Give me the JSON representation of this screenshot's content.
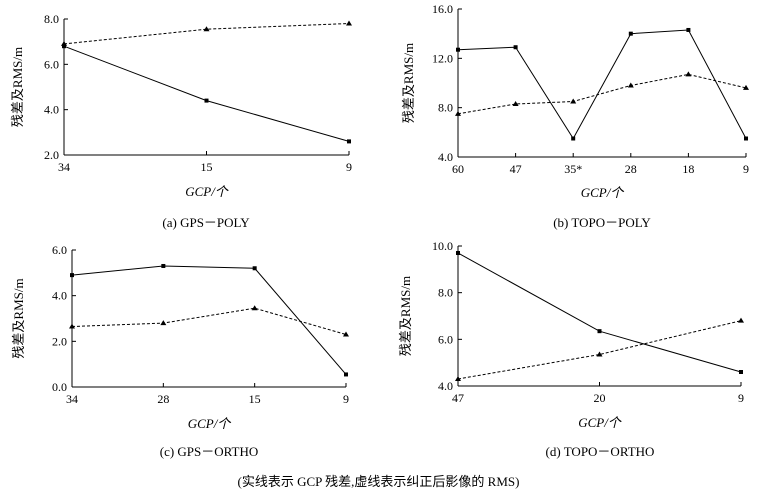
{
  "chart_data": [
    {
      "type": "line",
      "caption": "(a) GPS－POLY",
      "xlabel": "GCP/个",
      "ylabel": "残差及RMS/m",
      "categories": [
        "34",
        "15",
        "9"
      ],
      "ylim": [
        2.0,
        8.0
      ],
      "yticks": [
        "2.0",
        "4.0",
        "6.0",
        "8.0"
      ],
      "series": [
        {
          "name": "GCP残差",
          "style": "solid",
          "marker": "square",
          "values": [
            6.8,
            4.4,
            2.6
          ]
        },
        {
          "name": "纠正后影像RMS",
          "style": "dashed",
          "marker": "triangle",
          "values": [
            6.9,
            7.55,
            7.8
          ]
        }
      ]
    },
    {
      "type": "line",
      "caption": "(b) TOPO－POLY",
      "xlabel": "GCP/个",
      "ylabel": "残差及RMS/m",
      "categories": [
        "60",
        "47",
        "35*",
        "28",
        "18",
        "9"
      ],
      "ylim": [
        4.0,
        16.0
      ],
      "yticks": [
        "4.0",
        "8.0",
        "12.0",
        "16.0"
      ],
      "series": [
        {
          "name": "GCP残差",
          "style": "solid",
          "marker": "square",
          "values": [
            12.7,
            12.9,
            5.5,
            14.0,
            14.3,
            5.5
          ]
        },
        {
          "name": "纠正后影像RMS",
          "style": "dashed",
          "marker": "triangle",
          "values": [
            7.5,
            8.3,
            8.5,
            9.8,
            10.7,
            9.6
          ]
        }
      ]
    },
    {
      "type": "line",
      "caption": "(c) GPS－ORTHO",
      "xlabel": "GCP/个",
      "ylabel": "残差及RMS/m",
      "categories": [
        "34",
        "28",
        "15",
        "9"
      ],
      "ylim": [
        0.0,
        6.0
      ],
      "yticks": [
        "0.0",
        "2.0",
        "4.0",
        "6.0"
      ],
      "series": [
        {
          "name": "GCP残差",
          "style": "solid",
          "marker": "square",
          "values": [
            4.9,
            5.3,
            5.2,
            0.55
          ]
        },
        {
          "name": "纠正后影像RMS",
          "style": "dashed",
          "marker": "triangle",
          "values": [
            2.65,
            2.8,
            3.45,
            2.3
          ]
        }
      ]
    },
    {
      "type": "line",
      "caption": "(d) TOPO－ORTHO",
      "xlabel": "GCP/个",
      "ylabel": "残差及RMS/m",
      "categories": [
        "47",
        "20",
        "9"
      ],
      "ylim": [
        4.0,
        10.0
      ],
      "yticks": [
        "4.0",
        "6.0",
        "8.0",
        "10.0"
      ],
      "series": [
        {
          "name": "GCP残差",
          "style": "solid",
          "marker": "square",
          "values": [
            9.7,
            6.35,
            4.6
          ]
        },
        {
          "name": "纠正后影像RMS",
          "style": "dashed",
          "marker": "triangle",
          "values": [
            4.3,
            5.35,
            6.8
          ]
        }
      ]
    }
  ],
  "footnote": "(实线表示 GCP 残差,虚线表示纠正后影像的 RMS)"
}
